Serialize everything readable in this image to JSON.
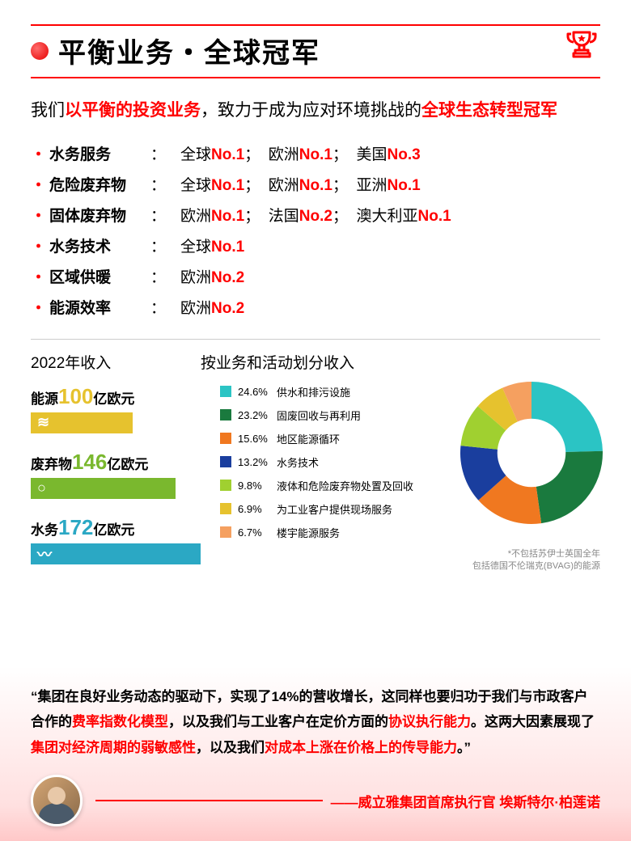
{
  "title": "平衡业务・全球冠军",
  "intro": {
    "p1": "我们",
    "h1": "以平衡的投资业务",
    "p2": "，致力于成为应对环境挑战的",
    "h2": "全球生态转型冠军"
  },
  "rankings": [
    {
      "label": "水务服务",
      "items": [
        [
          "全球",
          "No.1"
        ],
        [
          "欧洲",
          "No.1"
        ],
        [
          "美国",
          "No.3"
        ]
      ]
    },
    {
      "label": "危险废弃物",
      "items": [
        [
          "全球",
          "No.1"
        ],
        [
          "欧洲",
          "No.1"
        ],
        [
          "亚洲",
          "No.1"
        ]
      ]
    },
    {
      "label": "固体废弃物",
      "items": [
        [
          "欧洲",
          "No.1"
        ],
        [
          "法国",
          "No.2"
        ],
        [
          "澳大利亚",
          "No.1"
        ]
      ]
    },
    {
      "label": "水务技术",
      "items": [
        [
          "全球",
          "No.1"
        ]
      ]
    },
    {
      "label": "区域供暖",
      "items": [
        [
          "欧洲",
          "No.2"
        ]
      ]
    },
    {
      "label": "能源效率",
      "items": [
        [
          "欧洲",
          "No.2"
        ]
      ]
    }
  ],
  "revenueHeading": "2022年收入",
  "breakdownHeading": "按业务和活动划分收入",
  "revenue": [
    {
      "name": "能源",
      "value": "100",
      "unit": "亿欧元",
      "color": "#e6c22e",
      "numColor": "#e6c22e",
      "widthPct": 60,
      "icon": "≋"
    },
    {
      "name": "废弃物",
      "value": "146",
      "unit": "亿欧元",
      "color": "#7ab82e",
      "numColor": "#7ab82e",
      "widthPct": 85,
      "icon": "○"
    },
    {
      "name": "水务",
      "value": "172",
      "unit": "亿欧元",
      "color": "#2ba8c4",
      "numColor": "#2ba8c4",
      "widthPct": 100,
      "icon": "〰"
    }
  ],
  "pie": {
    "slices": [
      {
        "pct": 24.6,
        "label": "供水和排污设施",
        "color": "#2bc4c4"
      },
      {
        "pct": 23.2,
        "label": "固废回收与再利用",
        "color": "#1a7a3e"
      },
      {
        "pct": 15.6,
        "label": "地区能源循环",
        "color": "#f07820"
      },
      {
        "pct": 13.2,
        "label": "水务技术",
        "color": "#1a3e9e"
      },
      {
        "pct": 9.8,
        "label": "液体和危险废弃物处置及回收",
        "color": "#a0d030"
      },
      {
        "pct": 6.9,
        "label": "为工业客户提供现场服务",
        "color": "#e6c22e"
      },
      {
        "pct": 6.7,
        "label": "楼宇能源服务",
        "color": "#f5a060"
      }
    ],
    "innerRadiusPct": 48
  },
  "footnote1": "*不包括苏伊士英国全年",
  "footnote2": "包括德国不伦瑞克(BVAG)的能源",
  "quote": {
    "q1": "“集团在良好业务动态的驱动下，实现了14%的营收增长，这同样也要归功于我们与市政客户合作的",
    "h1": "费率指数化模型",
    "q2": "，以及我们与工业客户在定价方面的",
    "h2": "协议执行能力",
    "q3": "。这两大因素展现了",
    "h3": "集团对经济周期的弱敏感性",
    "q4": "，以及我们",
    "h4": "对成本上涨在价格上的传导能力",
    "q5": "。”"
  },
  "attribution": "——威立雅集团首席执行官 埃斯特尔·柏莲诺"
}
